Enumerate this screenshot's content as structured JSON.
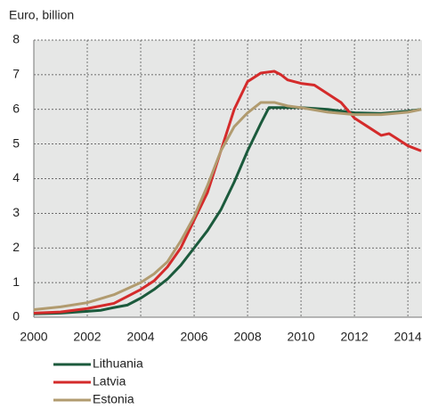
{
  "chart_data": {
    "type": "line",
    "y_label": "Euro, billion",
    "xlim": [
      2000,
      2014.53
    ],
    "xticks": [
      2000,
      2002,
      2004,
      2006,
      2008,
      2010,
      2012,
      2014
    ],
    "ylim": [
      0,
      8
    ],
    "yticks": [
      0,
      1,
      2,
      3,
      4,
      5,
      6,
      7,
      8
    ],
    "grid": true,
    "series": [
      {
        "name": "Lithuania",
        "color": "#1b5a3c",
        "x": [
          2000,
          2001,
          2002,
          2002.5,
          2003,
          2003.5,
          2004,
          2004.5,
          2005,
          2005.5,
          2006,
          2006.5,
          2007,
          2007.5,
          2008,
          2008.5,
          2008.8,
          2009,
          2010,
          2011,
          2012,
          2013,
          2014,
          2014.5
        ],
        "values": [
          0.1,
          0.12,
          0.17,
          0.2,
          0.28,
          0.35,
          0.55,
          0.8,
          1.1,
          1.5,
          2.0,
          2.5,
          3.1,
          3.9,
          4.8,
          5.6,
          6.05,
          6.05,
          6.05,
          6.0,
          5.9,
          5.88,
          5.95,
          6.0
        ]
      },
      {
        "name": "Latvia",
        "color": "#d42b2b",
        "x": [
          2000,
          2001,
          2002,
          2003,
          2004,
          2004.5,
          2005,
          2005.5,
          2006,
          2006.5,
          2007,
          2007.5,
          2008,
          2008.5,
          2009,
          2009.25,
          2009.5,
          2010,
          2010.5,
          2011,
          2011.5,
          2012,
          2012.5,
          2013,
          2013.3,
          2013.6,
          2014,
          2014.5
        ],
        "values": [
          0.12,
          0.15,
          0.25,
          0.4,
          0.8,
          1.05,
          1.45,
          2.0,
          2.8,
          3.6,
          4.8,
          6.0,
          6.8,
          7.05,
          7.1,
          7.0,
          6.85,
          6.75,
          6.7,
          6.45,
          6.2,
          5.75,
          5.5,
          5.25,
          5.3,
          5.15,
          4.95,
          4.8
        ]
      },
      {
        "name": "Estonia",
        "color": "#b19b6f",
        "x": [
          2000,
          2001,
          2002,
          2003,
          2004,
          2004.5,
          2005,
          2005.5,
          2006,
          2006.5,
          2007,
          2007.5,
          2008,
          2008.5,
          2009,
          2009.5,
          2010,
          2011,
          2012,
          2013,
          2014,
          2014.5
        ],
        "values": [
          0.22,
          0.3,
          0.42,
          0.65,
          1.0,
          1.25,
          1.6,
          2.2,
          2.9,
          3.8,
          4.8,
          5.5,
          5.9,
          6.2,
          6.2,
          6.1,
          6.05,
          5.92,
          5.85,
          5.85,
          5.92,
          6.0
        ]
      }
    ]
  }
}
